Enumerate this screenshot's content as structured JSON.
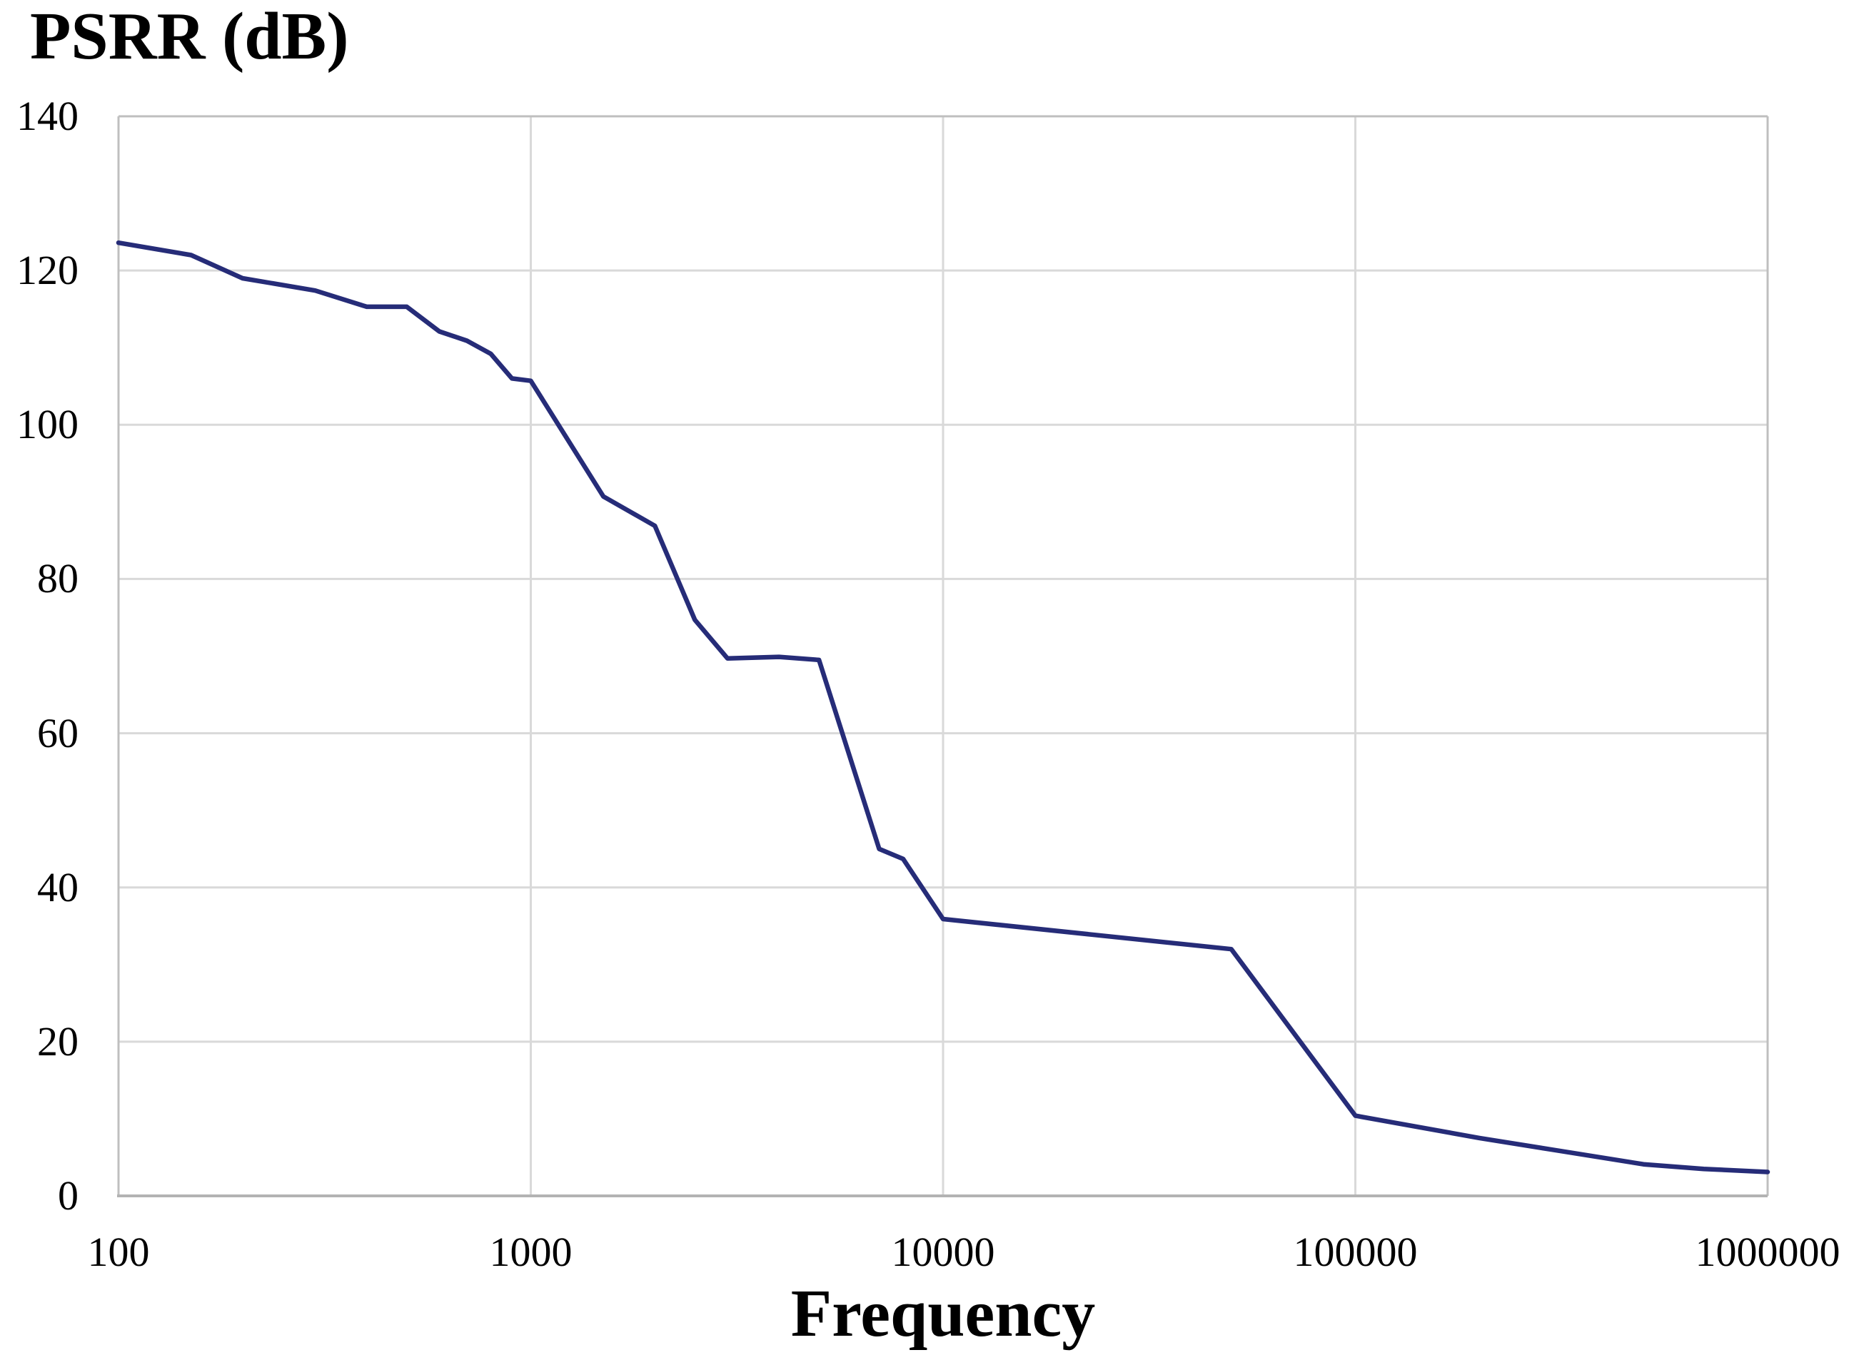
{
  "header": {
    "title": "PSRR (dB)"
  },
  "axes": {
    "x_title": "Frequency",
    "x_tick_labels": [
      "100",
      "1000",
      "10000",
      "100000",
      "1000000"
    ],
    "y_tick_labels": [
      "0",
      "20",
      "40",
      "60",
      "80",
      "100",
      "120",
      "140"
    ]
  },
  "colors": {
    "line": "#262c78",
    "gridline": "#d9d9d9",
    "plot_border": "#bfbfbf",
    "axis_line": "#b3b3b3",
    "text": "#000000",
    "background": "#ffffff"
  },
  "chart_data": {
    "type": "line",
    "title": "PSRR (dB)",
    "xlabel": "Frequency",
    "ylabel": "",
    "x_scale": "log",
    "xlim": [
      100,
      1000000
    ],
    "ylim": [
      0,
      140
    ],
    "x_ticks": [
      100,
      1000,
      10000,
      100000,
      1000000
    ],
    "y_ticks": [
      0,
      20,
      40,
      60,
      80,
      100,
      120,
      140
    ],
    "grid": true,
    "legend_position": "none",
    "series": [
      {
        "name": "PSRR",
        "x": [
          100,
          150,
          200,
          300,
          400,
          500,
          600,
          700,
          800,
          900,
          1000,
          1500,
          2000,
          2500,
          3000,
          4000,
          5000,
          7000,
          8000,
          10000,
          50000,
          100000,
          200000,
          300000,
          500000,
          700000,
          1000000
        ],
        "y": [
          123.6,
          122.0,
          119.0,
          117.4,
          115.3,
          115.3,
          112.1,
          110.9,
          109.2,
          106.0,
          105.7,
          90.7,
          86.9,
          74.7,
          69.7,
          69.9,
          69.5,
          45.0,
          43.7,
          35.9,
          32.0,
          10.4,
          7.5,
          6.0,
          4.1,
          3.5,
          3.1
        ]
      }
    ]
  }
}
